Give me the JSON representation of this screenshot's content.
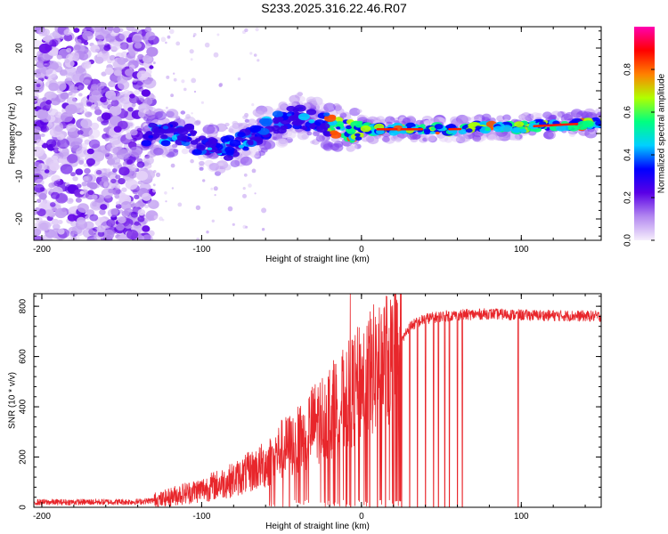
{
  "title": "S233.2025.316.22.46.R07",
  "chart_data": [
    {
      "type": "heatmap",
      "xlabel": "Height of straight line (km)",
      "ylabel": "Frequency (Hz)",
      "xlim": [
        -205,
        150
      ],
      "ylim": [
        -25,
        25
      ],
      "xticks": [
        -200,
        -100,
        0,
        100
      ],
      "yticks": [
        -20,
        -10,
        0,
        10,
        20
      ],
      "colorbar": {
        "label": "Normalized spectral amplitude",
        "range": [
          0.0,
          1.0
        ],
        "ticks": [
          0.0,
          0.2,
          0.4,
          0.6,
          0.8
        ],
        "tick_labels": [
          "0.0",
          "0.2",
          "0.4",
          "0.6",
          "0.8"
        ],
        "colors": [
          "#f6eefc",
          "#b388f0",
          "#5a00e6",
          "#0000ff",
          "#00d0ff",
          "#00ff80",
          "#b0ff00",
          "#ff8000",
          "#ff0000",
          "#ff00b0"
        ]
      },
      "ridge": {
        "x": [
          -135,
          -120,
          -110,
          -100,
          -90,
          -80,
          -70,
          -60,
          -50,
          -40,
          -30,
          -20,
          -10,
          -5,
          0,
          20,
          40,
          60,
          80,
          100,
          120,
          150
        ],
        "y": [
          0,
          0,
          0,
          -3,
          -4,
          -3,
          -1,
          1,
          3,
          4,
          3,
          2,
          1,
          0,
          1,
          1,
          1,
          1,
          1.5,
          1.5,
          2,
          2.5
        ]
      },
      "noise_region_x": [
        -205,
        -130
      ]
    },
    {
      "type": "line",
      "xlabel": "Height of straight line (km)",
      "ylabel": "SNR (10 * v/v)",
      "xlim": [
        -205,
        150
      ],
      "ylim": [
        0,
        850
      ],
      "xticks": [
        -200,
        -100,
        0,
        100
      ],
      "yticks": [
        0,
        200,
        400,
        600,
        800
      ],
      "series": [
        {
          "name": "SNR",
          "color": "#e8262b",
          "envelope_x": [
            -205,
            -140,
            -125,
            -115,
            -100,
            -90,
            -80,
            -70,
            -60,
            -50,
            -40,
            -30,
            -20,
            -10,
            0,
            10,
            20,
            25,
            30,
            40,
            50,
            60,
            80,
            100,
            150
          ],
          "envelope_y": [
            20,
            22,
            30,
            50,
            70,
            90,
            110,
            140,
            170,
            230,
            260,
            330,
            380,
            430,
            500,
            560,
            600,
            660,
            720,
            750,
            760,
            765,
            770,
            765,
            760
          ],
          "dropouts_x": [
            -7,
            5,
            10,
            15,
            20,
            25,
            30,
            35,
            40,
            45,
            48,
            52,
            55,
            60,
            63,
            98
          ],
          "peak": {
            "x": -7,
            "y": 850
          }
        }
      ]
    }
  ]
}
